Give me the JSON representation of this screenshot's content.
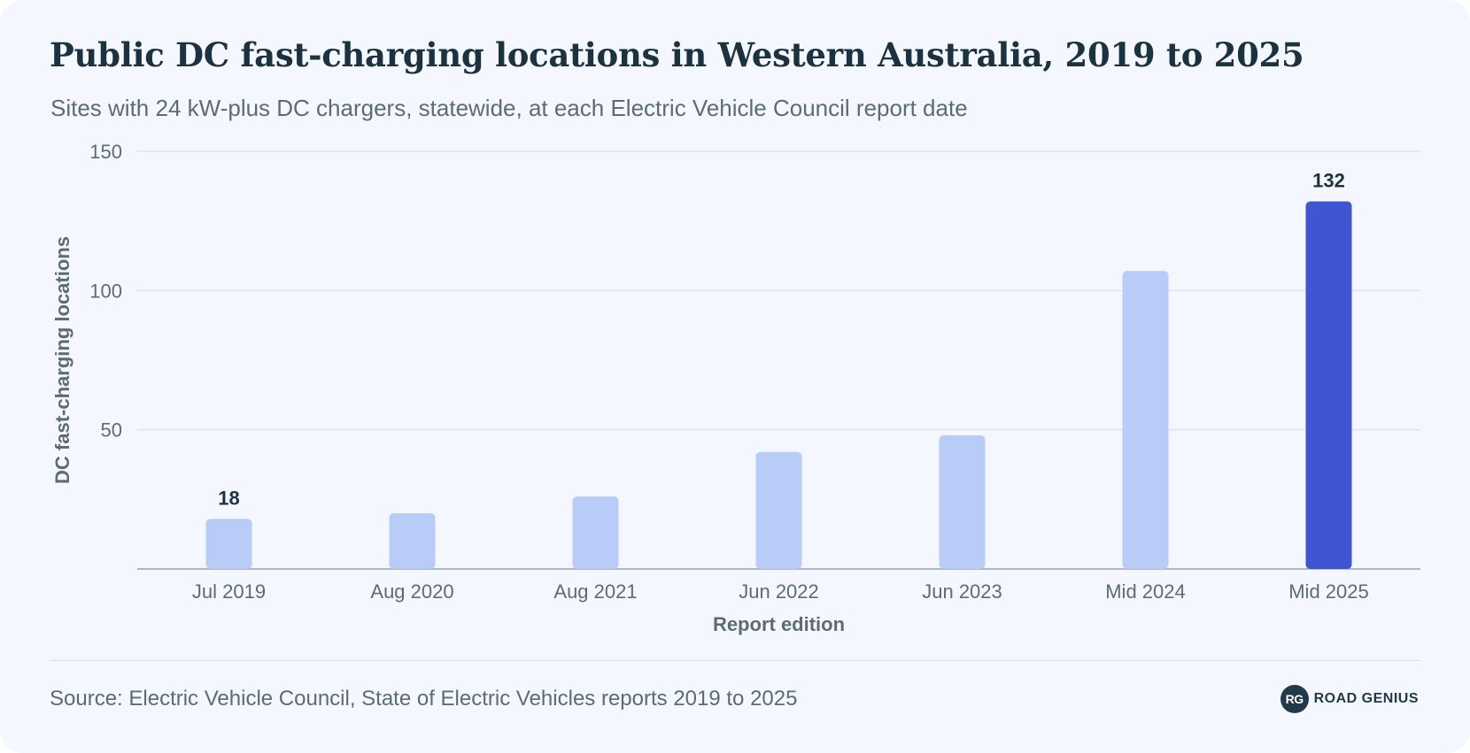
{
  "header": {
    "title": "Public DC fast-charging locations in Western Australia, 2019 to 2025",
    "subtitle": "Sites with 24 kW-plus DC chargers, statewide, at each Electric Vehicle Council report date"
  },
  "chart_data": {
    "type": "bar",
    "title": "Public DC fast-charging locations in Western Australia, 2019 to 2025",
    "subtitle": "Sites with 24 kW-plus DC chargers, statewide, at each Electric Vehicle Council report date",
    "categories": [
      "Jul 2019",
      "Aug 2020",
      "Aug 2021",
      "Jun 2022",
      "Jun 2023",
      "Mid 2024",
      "Mid 2025"
    ],
    "values": [
      18,
      20,
      26,
      42,
      48,
      107,
      132
    ],
    "data_labels": [
      {
        "category": "Jul 2019",
        "text": "18"
      },
      {
        "category": "Mid 2025",
        "text": "132"
      }
    ],
    "highlight_category": "Mid 2025",
    "xlabel": "Report edition",
    "ylabel": "DC fast-charging locations",
    "ylim": [
      0,
      150
    ],
    "yticks": [
      50,
      100,
      150
    ],
    "grid": true,
    "colors": {
      "bar": "#b9cbf7",
      "highlight": "#3f55d2",
      "grid": "#dde4ea",
      "axis": "#9aa3ab",
      "tick_text": "#5d6b75",
      "label_text": "#1c3240"
    }
  },
  "footer": {
    "source": "Source: Electric Vehicle Council, State of Electric Vehicles reports 2019 to 2025",
    "brand_initials": "RG",
    "brand_name": "ROAD GENIUS"
  }
}
